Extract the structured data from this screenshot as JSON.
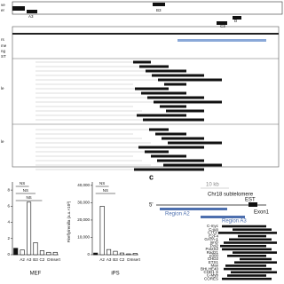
{
  "browser": {
    "top_labels": [
      "ve",
      "er"
    ],
    "regions": [
      "A2",
      "A3",
      "B3",
      "C3",
      "D"
    ],
    "track_labels": [
      "rs",
      "me",
      "ng",
      "ST",
      "le",
      "le"
    ]
  },
  "chart_data": [
    {
      "type": "bar",
      "categories": [
        null,
        "A2",
        "A3",
        "B3",
        "C2",
        "D",
        "Insert"
      ],
      "values": [
        0.8,
        0.6,
        6.5,
        1.5,
        0.5,
        0.3,
        0.3
      ],
      "color": "#ffffff",
      "ylim": [
        0,
        9
      ],
      "yticks": [
        0,
        2,
        4,
        6,
        8
      ],
      "xlabel": "MEF",
      "annotations": [
        "NS",
        "NS",
        "NS"
      ]
    },
    {
      "type": "bar",
      "categories": [
        null,
        "A2",
        "A3",
        "B3",
        "C2",
        "D",
        "Insert"
      ],
      "values": [
        1000,
        28000,
        3000,
        2000,
        1000,
        500,
        800
      ],
      "color": "#ffffff",
      "ylim": [
        0,
        42000
      ],
      "yticks": [
        0,
        {
          "value": 10000,
          "label": "10,000"
        },
        {
          "value": 20000,
          "label": "20,000"
        },
        {
          "value": 30000,
          "label": "30,000"
        },
        {
          "value": 40000,
          "label": "40,000"
        }
      ],
      "ylabel": "Firefly/renilla (a.u.×10³)",
      "xlabel": "iPS",
      "annotations": [
        "NS",
        "NS"
      ]
    }
  ],
  "panel_c": {
    "label": "c",
    "scale": "10 kb",
    "location": "Chr18 subtelomere",
    "end": "5'",
    "region_a2": "Region A2",
    "region_a3": "Region A3",
    "est": "EST",
    "exon": "Exon1",
    "factors": [
      "C-myc",
      "C-jun",
      "CTCF",
      "E2F4",
      "GATA-1",
      "junD",
      "Pol2",
      "Pol2S2",
      "Rad21",
      "p300",
      "CHD2",
      "ETS1",
      "Max",
      "BHLHE40",
      "CHD1 S",
      "C-Myb",
      "CORES"
    ]
  }
}
